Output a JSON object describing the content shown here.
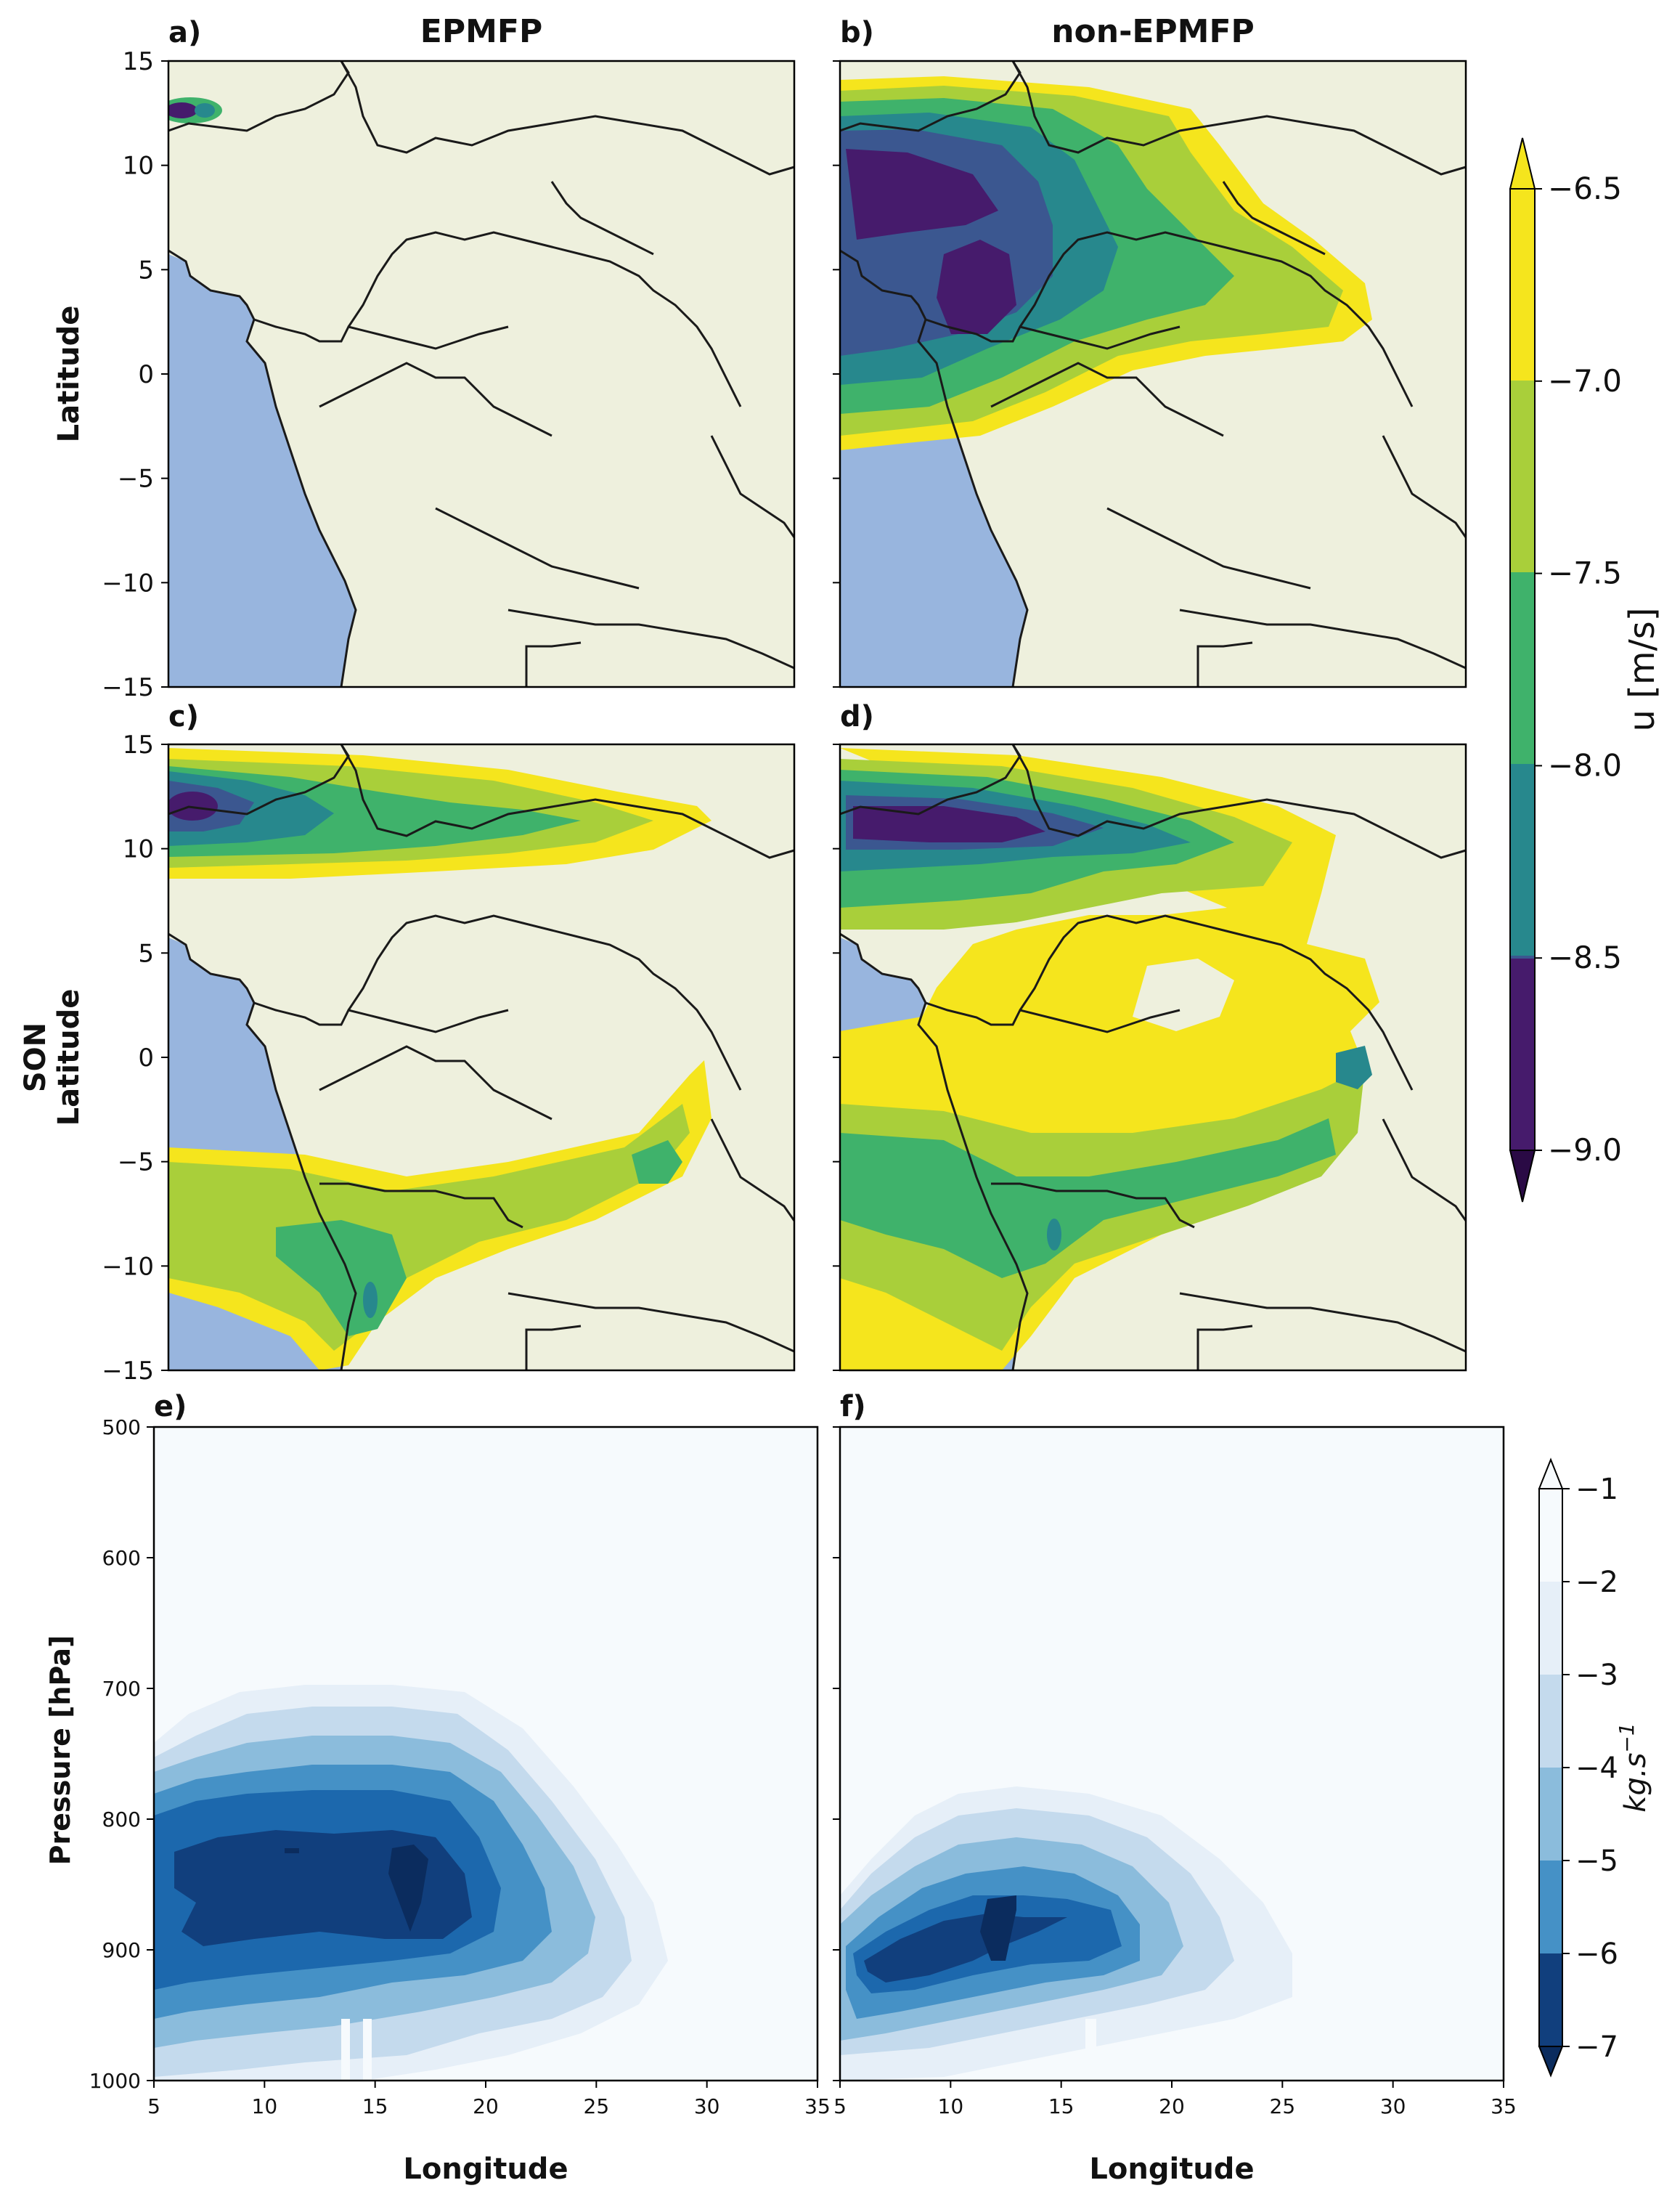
{
  "colors": {
    "ocean": "#98b5de",
    "land": "#eef0dd",
    "border": "#1a1a1a",
    "u_levels": [
      "#461b6c",
      "#3b5790",
      "#27888d",
      "#3fb26b",
      "#a9cf3a",
      "#f5e51d"
    ],
    "flux_levels": [
      "#113f7d",
      "#1c68ad",
      "#4591c6",
      "#8bbcdc",
      "#c4daed",
      "#e6eff8",
      "#f6fafd"
    ]
  },
  "panels": {
    "a": {
      "label": "a)",
      "title": "EPMFP"
    },
    "b": {
      "label": "b)",
      "title": "non-EPMFP"
    },
    "c": {
      "label": "c)"
    },
    "d": {
      "label": "d)"
    },
    "e": {
      "label": "e)"
    },
    "f": {
      "label": "f)"
    }
  },
  "row_labels": {
    "row1": "Latitude",
    "row2_line1": "SON",
    "row2_line2": "Latitude",
    "row3": "Pressure [hPa]"
  },
  "colorbar_u": {
    "label": "u [m/s]",
    "ticks": [
      "−6.5",
      "−7.0",
      "−7.5",
      "−8.0",
      "−8.5",
      "−9.0"
    ]
  },
  "colorbar_flux": {
    "label": "kg.s",
    "label_sup": "−1",
    "ticks": [
      "−1",
      "−2",
      "−3",
      "−4",
      "−5",
      "−6",
      "−7"
    ]
  },
  "chart_data": [
    {
      "panel": "a",
      "type": "heatmap",
      "title": "EPMFP",
      "ylabel": "Latitude",
      "ylim": [
        -15,
        15
      ],
      "yticks": [
        "15",
        "10",
        "5",
        "0",
        "−5",
        "−10",
        "−15"
      ],
      "variable": "u [m/s]",
      "levels": [
        -9.0,
        -8.5,
        -8.0,
        -7.5,
        -7.0,
        -6.5
      ],
      "note": "only a small easterly core near 12N at the western edge"
    },
    {
      "panel": "b",
      "type": "heatmap",
      "title": "non-EPMFP",
      "ylim": [
        -15,
        15
      ],
      "variable": "u [m/s]",
      "levels": [
        -9.0,
        -8.5,
        -8.0,
        -7.5,
        -7.0,
        -6.5
      ],
      "note": "broad jet core (< -8.5) around 0-10N in the west extending east"
    },
    {
      "panel": "c",
      "type": "heatmap",
      "ylabel": "Latitude",
      "ylim": [
        -15,
        15
      ],
      "yticks": [
        "15",
        "10",
        "5",
        "0",
        "−5",
        "−10",
        "−15"
      ],
      "variable": "u [m/s]",
      "levels": [
        -9.0,
        -8.5,
        -8.0,
        -7.5,
        -7.0,
        -6.5
      ],
      "note": "northern jet near 12N and southern band near -7"
    },
    {
      "panel": "d",
      "type": "heatmap",
      "ylim": [
        -15,
        15
      ],
      "variable": "u [m/s]",
      "levels": [
        -9.0,
        -8.5,
        -8.0,
        -7.5,
        -7.0,
        -6.5
      ],
      "note": "strong northern jet near 10N and broad southern band"
    },
    {
      "panel": "e",
      "type": "heatmap",
      "xlabel": "Longitude",
      "ylabel": "Pressure [hPa]",
      "xlim": [
        5,
        35
      ],
      "ylim": [
        1000,
        500
      ],
      "xticks": [
        "5",
        "10",
        "15",
        "20",
        "25",
        "30",
        "35"
      ],
      "yticks": [
        "500",
        "600",
        "700",
        "800",
        "900",
        "1000"
      ],
      "variable": "kg.s-1",
      "levels": [
        -7,
        -6,
        -5,
        -4,
        -3,
        -2,
        -1
      ],
      "note": "core below -6 near 840 hPa between 5 and 19E"
    },
    {
      "panel": "f",
      "type": "heatmap",
      "xlabel": "Longitude",
      "xlim": [
        5,
        35
      ],
      "ylim": [
        1000,
        500
      ],
      "xticks": [
        "5",
        "10",
        "15",
        "20",
        "25",
        "30",
        "35"
      ],
      "variable": "kg.s-1",
      "levels": [
        -7,
        -6,
        -5,
        -4,
        -3,
        -2,
        -1
      ],
      "note": "weaker core near 880 hPa around 8-13E"
    }
  ]
}
